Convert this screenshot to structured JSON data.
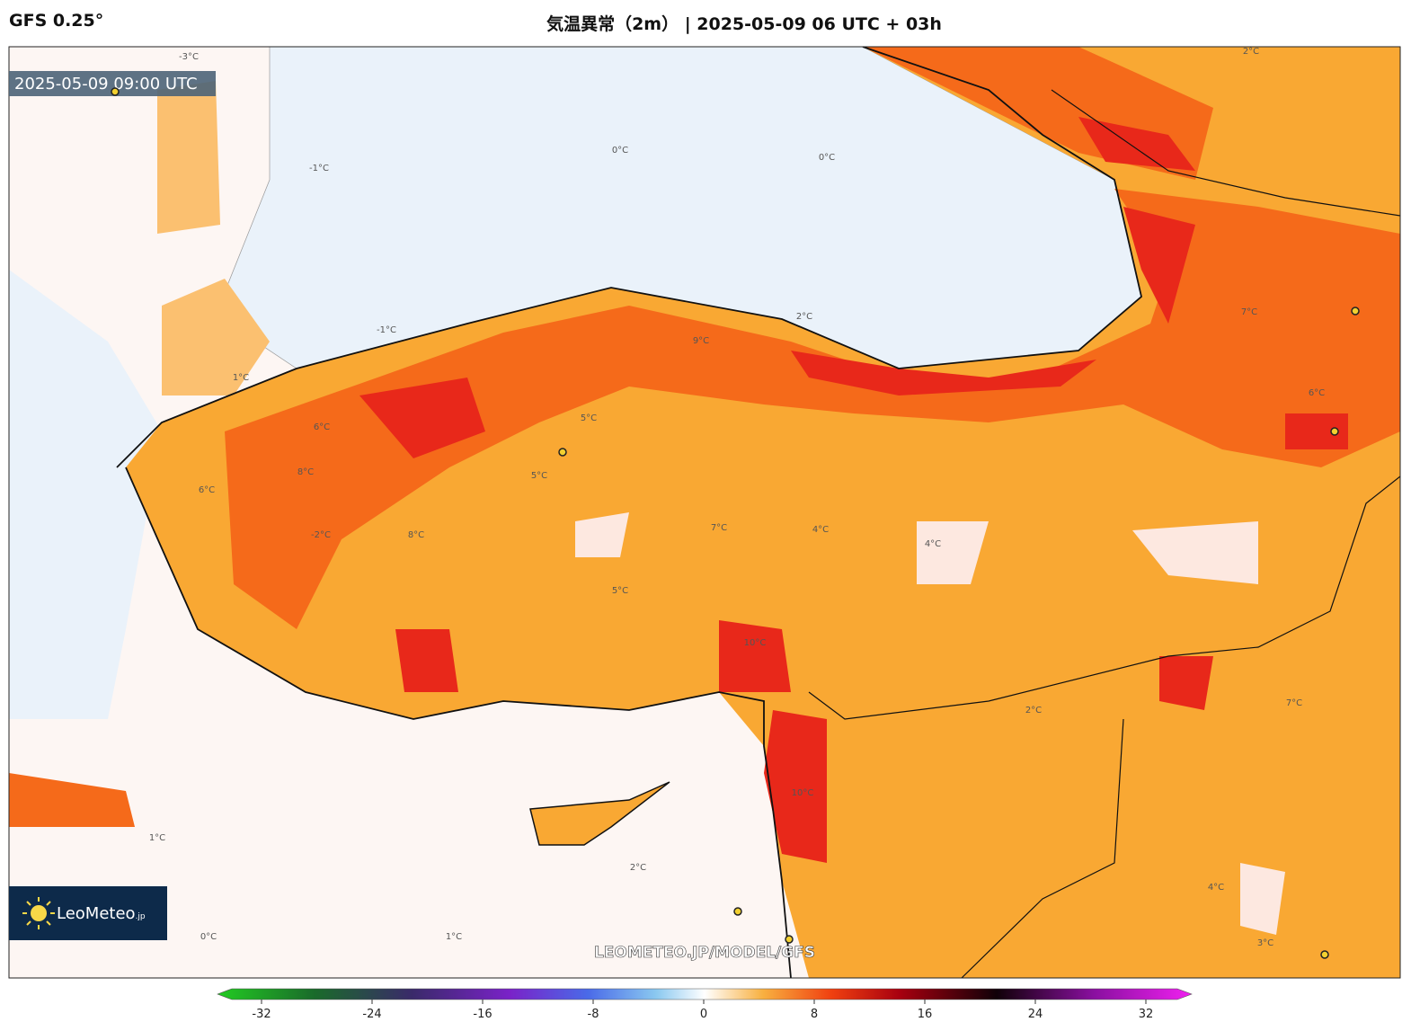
{
  "header": {
    "model": "GFS 0.25°",
    "title": "気温異常（2m） | 2025-05-09 06 UTC + 03h"
  },
  "map": {
    "valid_time": "2025-05-09 09:00 UTC",
    "watermark": "LEOMETEO.JP/MODEL/GFS",
    "logo": {
      "name": "LeoMeteo",
      "suffix": ".jp"
    },
    "contour_labels": [
      "-3°C",
      "0°C",
      "-1°C",
      "0°C",
      "2°C",
      "-1°C",
      "5°C",
      "6°C",
      "8°C",
      "7°C",
      "4°C",
      "10°C",
      "5°C",
      "4°C",
      "2°C",
      "10°C",
      "1°C",
      "2°C",
      "1°C",
      "0°C",
      "3°C",
      "7°C",
      "2°C",
      "4°C",
      "6°C",
      "7°C",
      "1°C",
      "-2°C",
      "6°C",
      "5°C",
      "9°C",
      "8°C"
    ]
  },
  "colorbar": {
    "ticks": [
      -32,
      -24,
      -16,
      -8,
      0,
      8,
      16,
      24,
      32
    ]
  }
}
